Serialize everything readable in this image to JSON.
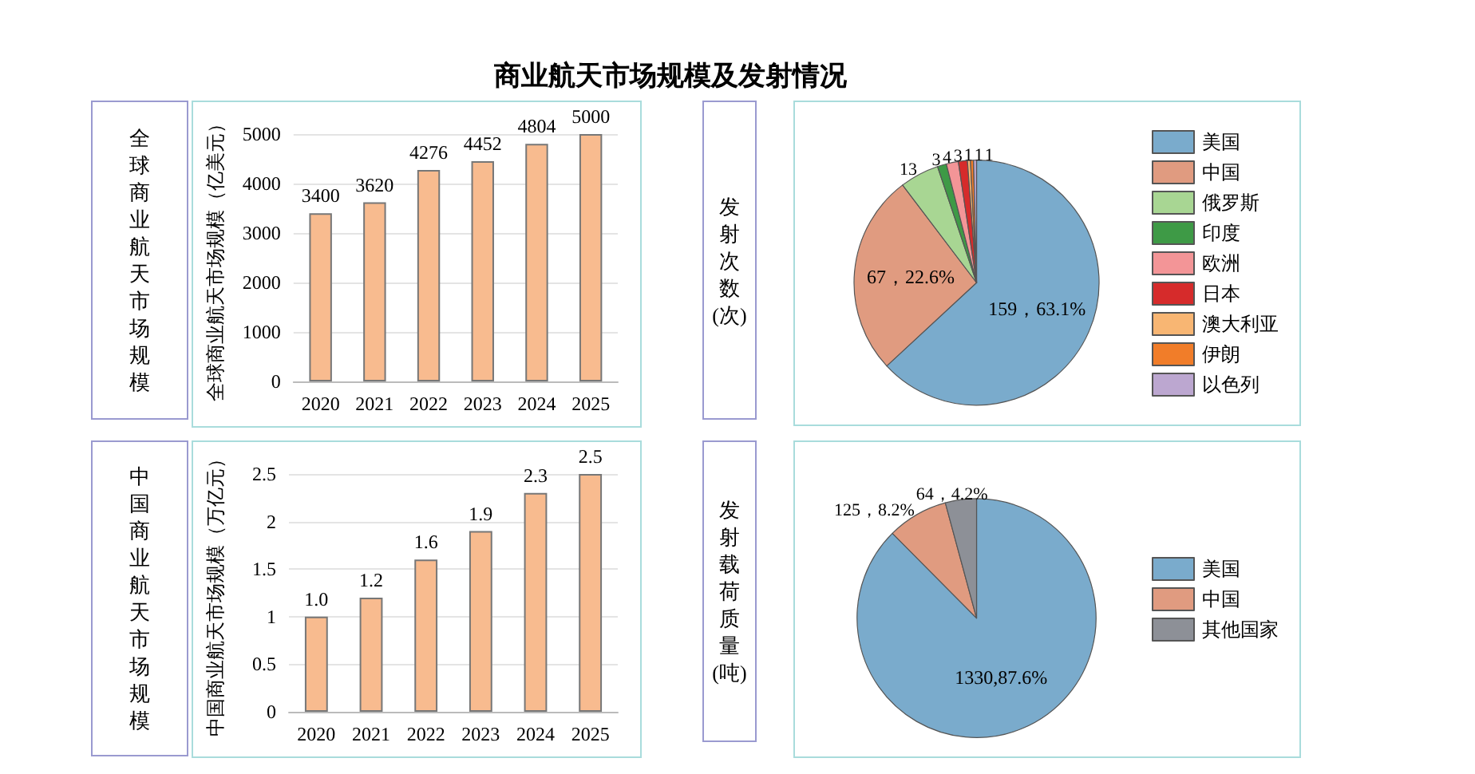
{
  "chart_data": [
    {
      "type": "bar",
      "title": "全球商业航天市场规模",
      "annotations": [
        "商业航天市场规模及发射情况"
      ],
      "ylabel": "全球商业航天市场规模（亿美元）",
      "categories": [
        "2020",
        "2021",
        "2022",
        "2023",
        "2024",
        "2025"
      ],
      "values": [
        3400,
        3620,
        4276,
        4452,
        4804,
        5000
      ],
      "color": "#f8bb8f",
      "ylim": [
        0,
        5000
      ],
      "yticks": [
        0,
        1000,
        2000,
        3000,
        4000,
        5000
      ],
      "grid": "y",
      "data_labels": true
    },
    {
      "type": "pie",
      "title": "发射次数(次)",
      "categories": [
        "美国",
        "中国",
        "俄罗斯",
        "印度",
        "欧洲",
        "日本",
        "澳大利亚",
        "伊朗",
        "以色列"
      ],
      "values": [
        159,
        67,
        13,
        3,
        4,
        3,
        1,
        1,
        1
      ],
      "value_labels": [
        "159，63.1%",
        "67，22.6%",
        "13",
        "3",
        "4",
        "3",
        "1",
        "1",
        "1"
      ],
      "colors": [
        "#7aabcc",
        "#e09b80",
        "#a8d693",
        "#3e9a46",
        "#f39597",
        "#d62b2b",
        "#f8b673",
        "#f17d29",
        "#bca7d0"
      ],
      "legend": "right"
    },
    {
      "type": "bar",
      "title": "中国商业航天市场规模",
      "ylabel": "中国商业航天市场规模（万亿元）",
      "categories": [
        "2020",
        "2021",
        "2022",
        "2023",
        "2024",
        "2025"
      ],
      "values": [
        1.0,
        1.2,
        1.6,
        1.9,
        2.3,
        2.5
      ],
      "value_labels": [
        "1.0",
        "1.2",
        "1.6",
        "1.9",
        "2.3",
        "2.5"
      ],
      "color": "#f8bb8f",
      "ylim": [
        0,
        2.5
      ],
      "yticks": [
        0,
        0.5,
        1,
        1.5,
        2,
        2.5
      ],
      "grid": "y"
    },
    {
      "type": "pie",
      "title": "发射载荷质量(吨)",
      "categories": [
        "美国",
        "中国",
        "其他国家"
      ],
      "values": [
        1330,
        125,
        64
      ],
      "value_labels": [
        "1330,87.6%",
        "125，8.2%",
        "64，4.2%"
      ],
      "colors": [
        "#7aabcc",
        "#e09b80",
        "#8d9097"
      ],
      "legend": "right"
    }
  ]
}
